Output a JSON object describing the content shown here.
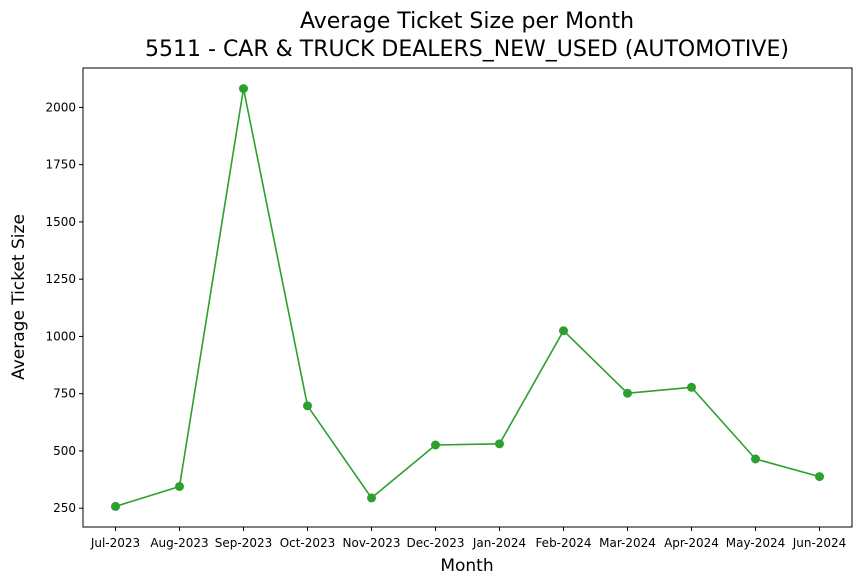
{
  "chart_data": {
    "type": "line",
    "title": "Average Ticket Size per Month",
    "subtitle": "5511 - CAR & TRUCK DEALERS_NEW_USED (AUTOMOTIVE)",
    "xlabel": "Month",
    "ylabel": "Average Ticket Size",
    "categories": [
      "Jul-2023",
      "Aug-2023",
      "Sep-2023",
      "Oct-2023",
      "Nov-2023",
      "Dec-2023",
      "Jan-2024",
      "Feb-2024",
      "Mar-2024",
      "Apr-2024",
      "May-2024",
      "Jun-2024"
    ],
    "series": [
      {
        "values": [
          258,
          345,
          2082,
          697,
          295,
          526,
          531,
          1025,
          752,
          778,
          465,
          388
        ],
        "color": "#2ca02c",
        "marker": "circle"
      }
    ],
    "yticks": [
      250,
      500,
      750,
      1000,
      1250,
      1500,
      1750,
      2000
    ],
    "ylim": [
      168,
      2172
    ],
    "grid": false,
    "legend": "none"
  }
}
